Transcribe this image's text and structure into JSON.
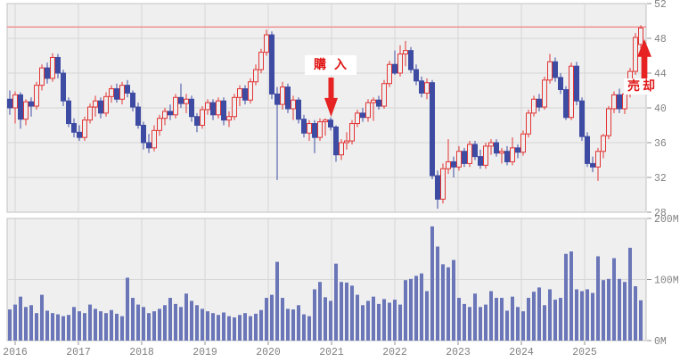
{
  "chart_data": {
    "type": "candlestick",
    "subtype": "monthly candlesticks with volume sub-panel",
    "x_years": [
      2016,
      2017,
      2018,
      2019,
      2020,
      2021,
      2022,
      2023,
      2024,
      2025
    ],
    "price_axis": {
      "ticks": [
        52,
        48,
        44,
        40,
        36,
        32,
        28
      ],
      "ylim": [
        28,
        52
      ]
    },
    "volume_axis": {
      "ticks": [
        "200M",
        "100M",
        "0M"
      ],
      "ylim_millions": [
        0,
        200
      ]
    },
    "reference_line": {
      "value": 49.3,
      "color": "#f28a8a"
    },
    "annotations": {
      "buy": {
        "label": "購入",
        "candle_index": 60,
        "arrow": "down",
        "color": "#e62222"
      },
      "sell": {
        "label": "売却",
        "candle_index": 118,
        "arrow": "up",
        "color": "#e62222"
      }
    },
    "colors": {
      "up": "#e23434",
      "down": "#3d4ba3",
      "volume": "#6a76b8",
      "panel_bg": "#efefef",
      "grid": "#d6d6d6",
      "border": "#c2c2c2",
      "axis_text": "#808080",
      "tick": "#909090"
    },
    "candles_ohlc": [
      [
        41.0,
        42.0,
        39.2,
        40.0
      ],
      [
        40.0,
        41.9,
        38.2,
        41.5
      ],
      [
        41.5,
        41.8,
        37.6,
        38.7
      ],
      [
        38.7,
        41.0,
        38.0,
        40.7
      ],
      [
        40.7,
        41.2,
        39.0,
        40.2
      ],
      [
        40.2,
        43.0,
        39.8,
        42.6
      ],
      [
        42.6,
        45.0,
        42.0,
        44.6
      ],
      [
        44.6,
        45.2,
        42.8,
        43.4
      ],
      [
        43.4,
        46.3,
        43.0,
        45.8
      ],
      [
        45.8,
        46.2,
        43.4,
        44.0
      ],
      [
        44.0,
        44.4,
        40.2,
        40.8
      ],
      [
        40.8,
        41.2,
        37.8,
        38.2
      ],
      [
        38.2,
        38.8,
        36.6,
        37.2
      ],
      [
        37.2,
        38.0,
        36.2,
        36.6
      ],
      [
        36.6,
        39.0,
        36.2,
        38.6
      ],
      [
        38.6,
        40.5,
        38.2,
        40.1
      ],
      [
        40.1,
        41.4,
        39.0,
        40.8
      ],
      [
        40.8,
        41.2,
        38.8,
        39.4
      ],
      [
        39.4,
        41.8,
        39.0,
        41.3
      ],
      [
        41.3,
        42.6,
        40.6,
        42.2
      ],
      [
        42.2,
        42.8,
        40.6,
        41.0
      ],
      [
        41.0,
        43.0,
        40.4,
        42.6
      ],
      [
        42.6,
        43.2,
        41.2,
        41.7
      ],
      [
        41.7,
        42.0,
        39.6,
        40.1
      ],
      [
        40.1,
        40.6,
        37.6,
        38.0
      ],
      [
        38.0,
        38.4,
        35.2,
        36.0
      ],
      [
        36.0,
        37.0,
        34.8,
        35.4
      ],
      [
        35.4,
        38.0,
        35.0,
        37.4
      ],
      [
        37.4,
        39.2,
        36.8,
        38.8
      ],
      [
        38.8,
        40.0,
        38.0,
        39.6
      ],
      [
        39.6,
        40.4,
        38.6,
        39.2
      ],
      [
        39.2,
        41.6,
        38.8,
        41.2
      ],
      [
        41.2,
        42.8,
        40.0,
        40.5
      ],
      [
        40.5,
        41.6,
        39.4,
        41.0
      ],
      [
        41.0,
        41.4,
        38.4,
        39.0
      ],
      [
        39.0,
        39.4,
        37.2,
        38.0
      ],
      [
        38.0,
        40.2,
        37.6,
        39.8
      ],
      [
        39.8,
        41.0,
        39.2,
        40.6
      ],
      [
        40.6,
        41.0,
        38.6,
        39.2
      ],
      [
        39.2,
        41.2,
        38.8,
        40.8
      ],
      [
        40.8,
        41.2,
        38.0,
        38.6
      ],
      [
        38.6,
        39.6,
        37.8,
        39.0
      ],
      [
        39.0,
        41.6,
        38.6,
        41.2
      ],
      [
        41.2,
        42.6,
        40.2,
        42.2
      ],
      [
        42.2,
        42.6,
        40.4,
        40.9
      ],
      [
        40.9,
        43.4,
        40.5,
        43.0
      ],
      [
        43.0,
        45.0,
        42.6,
        44.4
      ],
      [
        44.4,
        46.8,
        44.0,
        46.4
      ],
      [
        46.4,
        49.0,
        46.0,
        48.4
      ],
      [
        48.4,
        48.8,
        41.0,
        41.6
      ],
      [
        41.6,
        42.4,
        31.7,
        40.4
      ],
      [
        40.4,
        43.0,
        39.8,
        42.4
      ],
      [
        42.4,
        42.8,
        39.4,
        39.9
      ],
      [
        39.9,
        41.4,
        38.6,
        40.9
      ],
      [
        40.9,
        41.2,
        38.2,
        38.7
      ],
      [
        38.7,
        39.2,
        36.6,
        37.1
      ],
      [
        37.1,
        38.6,
        36.2,
        38.2
      ],
      [
        38.2,
        38.6,
        34.8,
        36.6
      ],
      [
        36.6,
        38.8,
        36.2,
        38.4
      ],
      [
        38.4,
        38.8,
        36.8,
        38.6
      ],
      [
        38.6,
        38.9,
        37.4,
        37.8
      ],
      [
        37.8,
        38.0,
        33.8,
        34.6
      ],
      [
        34.6,
        36.4,
        34.0,
        36.0
      ],
      [
        36.0,
        37.2,
        35.2,
        36.2
      ],
      [
        36.2,
        38.6,
        35.8,
        38.2
      ],
      [
        38.2,
        39.8,
        37.8,
        39.4
      ],
      [
        39.4,
        40.0,
        38.4,
        38.9
      ],
      [
        38.9,
        41.0,
        38.4,
        40.6
      ],
      [
        40.6,
        41.2,
        38.5,
        40.9
      ],
      [
        40.9,
        41.4,
        39.8,
        40.2
      ],
      [
        40.2,
        43.2,
        39.9,
        42.8
      ],
      [
        42.8,
        45.4,
        42.4,
        45.0
      ],
      [
        45.0,
        46.6,
        43.8,
        44.0
      ],
      [
        44.0,
        47.2,
        43.6,
        46.2
      ],
      [
        46.2,
        47.7,
        44.8,
        46.6
      ],
      [
        46.6,
        47.0,
        44.0,
        44.4
      ],
      [
        44.4,
        45.0,
        42.6,
        43.1
      ],
      [
        43.1,
        43.6,
        41.2,
        41.7
      ],
      [
        41.7,
        43.4,
        41.0,
        42.9
      ],
      [
        42.9,
        43.2,
        31.8,
        32.2
      ],
      [
        32.2,
        32.8,
        28.4,
        29.5
      ],
      [
        29.5,
        33.6,
        29.0,
        33.0
      ],
      [
        33.0,
        36.4,
        32.4,
        33.8
      ],
      [
        33.8,
        34.4,
        32.0,
        33.2
      ],
      [
        33.2,
        35.6,
        32.8,
        35.0
      ],
      [
        35.0,
        35.4,
        33.2,
        33.6
      ],
      [
        33.6,
        36.2,
        33.2,
        35.8
      ],
      [
        35.8,
        36.2,
        34.0,
        34.4
      ],
      [
        34.4,
        35.2,
        33.0,
        33.4
      ],
      [
        33.4,
        36.0,
        33.0,
        35.6
      ],
      [
        35.6,
        36.4,
        34.6,
        36.0
      ],
      [
        36.0,
        36.4,
        34.4,
        34.8
      ],
      [
        34.8,
        35.4,
        33.6,
        35.0
      ],
      [
        35.0,
        35.6,
        33.4,
        33.8
      ],
      [
        33.8,
        36.6,
        33.4,
        35.4
      ],
      [
        35.4,
        35.8,
        34.2,
        34.9
      ],
      [
        34.9,
        37.4,
        34.5,
        37.0
      ],
      [
        37.0,
        39.8,
        36.6,
        39.4
      ],
      [
        39.4,
        41.4,
        39.0,
        41.0
      ],
      [
        41.0,
        41.6,
        39.6,
        40.1
      ],
      [
        40.1,
        43.6,
        39.8,
        43.2
      ],
      [
        43.2,
        46.2,
        42.8,
        45.3
      ],
      [
        45.3,
        45.8,
        43.0,
        43.5
      ],
      [
        43.5,
        44.0,
        41.6,
        42.1
      ],
      [
        42.1,
        42.5,
        38.6,
        38.9
      ],
      [
        38.9,
        45.2,
        38.6,
        44.8
      ],
      [
        44.8,
        45.3,
        40.3,
        40.8
      ],
      [
        40.8,
        41.2,
        36.2,
        36.7
      ],
      [
        36.7,
        37.2,
        33.2,
        33.6
      ],
      [
        33.6,
        34.4,
        32.6,
        33.2
      ],
      [
        33.2,
        35.4,
        31.6,
        35.0
      ],
      [
        35.0,
        37.0,
        34.2,
        36.8
      ],
      [
        36.8,
        40.2,
        36.4,
        39.9
      ],
      [
        39.9,
        41.9,
        39.4,
        41.5
      ],
      [
        41.5,
        42.2,
        39.4,
        39.9
      ],
      [
        39.9,
        42.0,
        39.3,
        41.6
      ],
      [
        41.6,
        44.6,
        41.2,
        44.2
      ],
      [
        44.2,
        48.6,
        43.8,
        48.1
      ],
      [
        47.3,
        49.5,
        46.8,
        49.2
      ]
    ],
    "volumes_millions": [
      51,
      59,
      72,
      55,
      58,
      45,
      75,
      49,
      45,
      43,
      40,
      42,
      55,
      48,
      45,
      59,
      52,
      48,
      45,
      50,
      44,
      40,
      103,
      70,
      59,
      55,
      45,
      48,
      52,
      58,
      70,
      60,
      55,
      77,
      65,
      58,
      52,
      48,
      45,
      42,
      46,
      40,
      38,
      42,
      45,
      40,
      44,
      50,
      70,
      75,
      129,
      70,
      52,
      51,
      58,
      43,
      40,
      84,
      96,
      71,
      65,
      126,
      96,
      95,
      90,
      75,
      58,
      65,
      72,
      60,
      68,
      62,
      67,
      59,
      99,
      101,
      106,
      110,
      81,
      187,
      154,
      125,
      120,
      132,
      70,
      60,
      55,
      77,
      55,
      59,
      81,
      70,
      70,
      49,
      72,
      55,
      48,
      70,
      80,
      87,
      58,
      84,
      67,
      70,
      142,
      146,
      84,
      81,
      84,
      78,
      138,
      99,
      101,
      135,
      101,
      96,
      152,
      89,
      66
    ]
  }
}
